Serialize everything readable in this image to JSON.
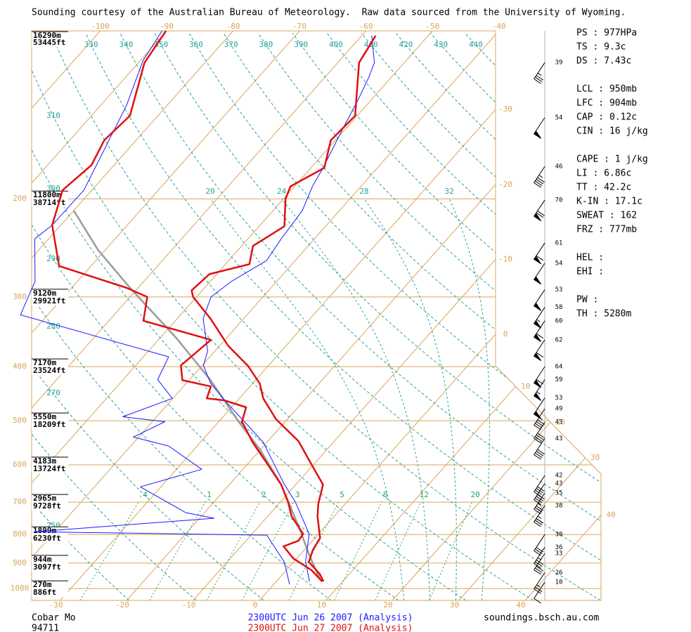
{
  "chart_data": {
    "type": "skewt",
    "header": "Sounding courtesy of the Australian Bureau of Meteorology.  Raw data sourced from the University of Wyoming.",
    "ylim": [
      1050,
      100
    ],
    "yticks": [
      200,
      300,
      400,
      500,
      600,
      700,
      800,
      900,
      1000
    ],
    "heights": [
      {
        "p": 100,
        "m": "16290m",
        "ft": "53445ft"
      },
      {
        "p": 200,
        "m": "11800m",
        "ft": "38714ft"
      },
      {
        "p": 300,
        "m": "9120m",
        "ft": "29921ft"
      },
      {
        "p": 400,
        "m": "7170m",
        "ft": "23524ft"
      },
      {
        "p": 500,
        "m": "5550m",
        "ft": "18209ft"
      },
      {
        "p": 600,
        "m": "4183m",
        "ft": "13724ft"
      },
      {
        "p": 700,
        "m": "2965m",
        "ft": "9728ft"
      },
      {
        "p": 800,
        "m": "1899m",
        "ft": "6230ft"
      },
      {
        "p": 900,
        "m": "944m",
        "ft": "3097ft"
      },
      {
        "p": 1000,
        "m": "270m",
        "ft": "886ft"
      }
    ],
    "xlim": [
      -34.3,
      51.4
    ],
    "xticks": [
      -30,
      -20,
      -10,
      0,
      10,
      20,
      30,
      40
    ],
    "top_ticks": [
      -100,
      -90,
      -80,
      -70,
      -60,
      -50,
      -40
    ],
    "right_ticks": [
      -30,
      -20,
      -10,
      0,
      10,
      20,
      30,
      40
    ],
    "dry_adiabats": [
      250,
      260,
      270,
      280,
      290,
      300,
      310,
      320,
      330,
      340,
      350,
      360,
      370,
      380,
      390,
      400,
      410,
      420,
      430,
      440
    ],
    "moist_adiabats": [
      20,
      24,
      28,
      32
    ],
    "mixing_ratios": [
      {
        "value": 0.4,
        "label": ".4"
      },
      1,
      2,
      3,
      5,
      8,
      12,
      20
    ],
    "grid_color": "#d9a55a",
    "dry_color": "#2aa39a",
    "mix_color": "#23a860",
    "series": [
      {
        "name": "2300UTC Jun 26 2007 (Analysis)",
        "color": "#1a1aff",
        "temperature": {
          "p": [
            971,
            896,
            798,
            700,
            651,
            597,
            547,
            497,
            460,
            428,
            398,
            375,
            328,
            300,
            281,
            258,
            236,
            210,
            190,
            177,
            149,
            132,
            121,
            114,
            102
          ],
          "t": [
            5.0,
            1.8,
            -1.4,
            -7.7,
            -11.7,
            -16.1,
            -20.5,
            -26.8,
            -31.9,
            -36.4,
            -39.8,
            -41.1,
            -46.1,
            -47.8,
            -46.8,
            -44.3,
            -45.0,
            -45.6,
            -47.3,
            -48.1,
            -50.5,
            -52.1,
            -53.4,
            -54.5,
            -58.5
          ]
        },
        "dewpoint": {
          "p": [
            983,
            896,
            821,
            802,
            791,
            748,
            731,
            657,
            611,
            555,
            535,
            502,
            492,
            456,
            422,
            384,
            323,
            281,
            236,
            223,
            193,
            136,
            113,
            100
          ],
          "t": [
            2.4,
            -1.4,
            -6.3,
            -7.6,
            -43.0,
            -17.8,
            -22.8,
            -33.1,
            -26.2,
            -34.3,
            -40.8,
            -38.1,
            -45.1,
            -40.1,
            -44.8,
            -46.2,
            -74.1,
            -76.4,
            -82.1,
            -81.3,
            -81.2,
            -86.1,
            -89.6,
            -90.7
          ]
        }
      },
      {
        "name": "2300UTC Jun 27 2007 (Analysis)",
        "color": "#e01010",
        "temperature": {
          "p": [
            971,
            941,
            896,
            853,
            812,
            742,
            706,
            651,
            597,
            544,
            497,
            456,
            429,
            399,
            367,
            328,
            300,
            292,
            273,
            262,
            243,
            224,
            200,
            190,
            176,
            157,
            142,
            114,
            102
          ],
          "t": [
            7.1,
            5.5,
            2.3,
            1.3,
            0.8,
            -2.5,
            -4.0,
            -5.9,
            -10.5,
            -15.4,
            -21.7,
            -26.4,
            -28.9,
            -33.0,
            -38.7,
            -45.0,
            -50.5,
            -51.6,
            -51.1,
            -46.4,
            -48.3,
            -46.2,
            -49.7,
            -50.6,
            -48.0,
            -50.7,
            -50.3,
            -56.8,
            -57.9
          ]
        },
        "dewpoint": {
          "p": [
            971,
            927,
            883,
            840,
            821,
            798,
            742,
            700,
            651,
            597,
            547,
            502,
            473,
            460,
            456,
            434,
            423,
            398,
            358,
            331,
            300,
            289,
            264,
            223,
            193,
            174,
            157,
            142,
            114,
            100
          ],
          "t": [
            6.9,
            3.8,
            -0.5,
            -3.6,
            -2.1,
            -2.3,
            -6.4,
            -8.8,
            -12.2,
            -17.1,
            -22.1,
            -26.5,
            -27.8,
            -31.9,
            -34.9,
            -35.9,
            -41.0,
            -43.2,
            -42.1,
            -54.8,
            -57.4,
            -61.7,
            -74.8,
            -81.3,
            -84.4,
            -83.4,
            -84.8,
            -84.2,
            -89.1,
            -90.1
          ]
        }
      }
    ],
    "parcel": {
      "color": "#9a9a9a",
      "p": [
        963,
        870,
        775,
        651,
        563,
        502,
        422,
        354,
        289,
        247,
        210
      ],
      "t": [
        6.3,
        1.4,
        -3.9,
        -12.2,
        -20.1,
        -27.0,
        -36.9,
        -47.8,
        -61.2,
        -71.1,
        -80.0
      ]
    },
    "winds": {
      "p": [
        114,
        143,
        175,
        201,
        240,
        261,
        291,
        313,
        331,
        358,
        400,
        422,
        455,
        476,
        503,
        538,
        627,
        648,
        674,
        710,
        800,
        843,
        865,
        936,
        974
      ],
      "speed": [
        39,
        54,
        46,
        70,
        61,
        54,
        53,
        58,
        60,
        62,
        64,
        59,
        53,
        49,
        43,
        43,
        42,
        43,
        35,
        38,
        30,
        36,
        33,
        26,
        10
      ]
    },
    "stats": [
      [
        "PS : 977HPa",
        "TS : 9.3c",
        "DS : 7.43c"
      ],
      [
        "LCL : 950mb",
        "LFC : 904mb",
        "CAP : 0.12c",
        "CIN : 16 j/kg"
      ],
      [
        "CAPE : 1 j/kg",
        "LI : 6.86c",
        "TT : 42.2c",
        "K-IN : 17.1c",
        "SWEAT : 162",
        "FRZ : 777mb"
      ],
      [
        "HEL :",
        "EHI :"
      ],
      [
        "PW :",
        "TH : 5280m"
      ]
    ],
    "station": "Cobar Mo",
    "station_id": "94711",
    "source": "soundings.bsch.au.com"
  }
}
